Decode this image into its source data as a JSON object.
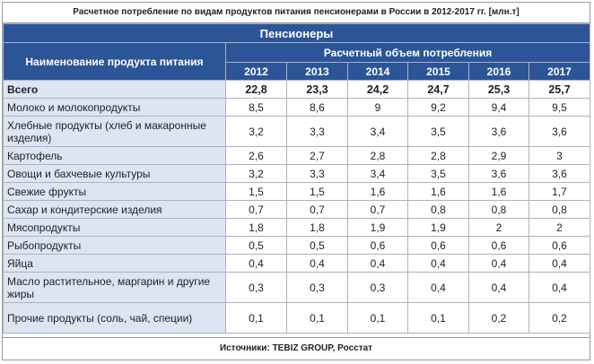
{
  "title": "Расчетное потребление по видам продуктов питания пенсионерами в России в 2012-2017 гг. [млн.т]",
  "band": "Пенсионеры",
  "name_header": "Наименование продукта питания",
  "volume_header": "Расчетный объем потребления",
  "years": [
    "2012",
    "2013",
    "2014",
    "2015",
    "2016",
    "2017"
  ],
  "total": {
    "label": "Всего",
    "values": [
      "22,8",
      "23,3",
      "24,2",
      "24,7",
      "25,3",
      "25,7"
    ]
  },
  "rows": [
    {
      "label": "Молоко и молокопродукты",
      "values": [
        "8,5",
        "8,6",
        "9",
        "9,2",
        "9,4",
        "9,5"
      ]
    },
    {
      "label": "Хлебные продукты (хлеб и макаронные изделия)",
      "values": [
        "3,2",
        "3,3",
        "3,4",
        "3,5",
        "3,6",
        "3,6"
      ]
    },
    {
      "label": "Картофель",
      "values": [
        "2,6",
        "2,7",
        "2,8",
        "2,8",
        "2,9",
        "3"
      ]
    },
    {
      "label": "Овощи и бахчевые культуры",
      "values": [
        "3,2",
        "3,3",
        "3,4",
        "3,5",
        "3,6",
        "3,6"
      ]
    },
    {
      "label": "Свежие фрукты",
      "values": [
        "1,5",
        "1,5",
        "1,6",
        "1,6",
        "1,6",
        "1,7"
      ]
    },
    {
      "label": "Сахар и кондитерские изделия",
      "values": [
        "0,7",
        "0,7",
        "0,7",
        "0,8",
        "0,8",
        "0,8"
      ]
    },
    {
      "label": "Мясопродукты",
      "values": [
        "1,8",
        "1,8",
        "1,9",
        "1,9",
        "2",
        "2"
      ]
    },
    {
      "label": "Рыбопродукты",
      "values": [
        "0,5",
        "0,5",
        "0,6",
        "0,6",
        "0,6",
        "0,6"
      ]
    },
    {
      "label": "Яйца",
      "values": [
        "0,4",
        "0,4",
        "0,4",
        "0,4",
        "0,4",
        "0,4"
      ]
    },
    {
      "label": "Масло растительное, маргарин и другие жиры",
      "values": [
        "0,3",
        "0,3",
        "0,3",
        "0,4",
        "0,4",
        "0,4"
      ]
    },
    {
      "label": "Прочие продукты (соль, чай, специи)",
      "values": [
        "0,1",
        "0,1",
        "0,1",
        "0,1",
        "0,2",
        "0,2"
      ]
    }
  ],
  "source": "Источники: TEBIZ GROUP, Росстат"
}
